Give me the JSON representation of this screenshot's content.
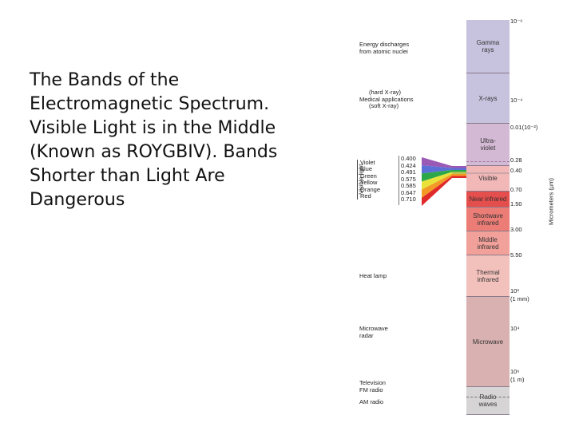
{
  "slide": {
    "text_lines": [
      "The Bands of the",
      "Electromagnetic Spectrum.",
      "Visible Light is in the Middle",
      "(Known as ROYGBIV).  Bands",
      "Shorter than Light Are",
      "Dangerous"
    ]
  },
  "spectrum": {
    "bands": [
      {
        "label": [
          "Gamma",
          "rays"
        ],
        "color": "#c7c2de"
      },
      {
        "label": [
          "X-rays"
        ],
        "color": "#c7c2de"
      },
      {
        "label": [
          "Ultra-",
          "violet"
        ],
        "color": "#d4b9d4"
      },
      {
        "label": [
          "Visible"
        ],
        "color": "#f2b8b8"
      },
      {
        "label": [
          "Near infrared"
        ],
        "color": "#e44e4c"
      },
      {
        "label": [
          "Shortwave",
          "infrared"
        ],
        "color": "#ec7c76"
      },
      {
        "label": [
          "Middle",
          "infrared"
        ],
        "color": "#f1a09a"
      },
      {
        "label": [
          "Thermal",
          "infrared"
        ],
        "color": "#f3c1bc"
      },
      {
        "label": [
          "Microwave"
        ],
        "color": "#d9b1b0"
      },
      {
        "label": [
          "Radio",
          "waves"
        ],
        "color": "#d6d4d4"
      }
    ],
    "left_labels": [
      {
        "lines": [
          "Energy discharges",
          "from atomic nuclei"
        ]
      },
      {
        "lines": [
          "(hard X-ray)",
          "Medical applications",
          "(soft X-ray)"
        ]
      },
      {
        "lines": [
          "Heat lamp"
        ]
      },
      {
        "lines": [
          "Microwave",
          "radar"
        ]
      },
      {
        "lines": [
          "Television",
          "FM radio"
        ]
      },
      {
        "lines": [
          "AM radio"
        ]
      }
    ],
    "right_labels": [
      {
        "text": "10⁻⁶"
      },
      {
        "text": "10⁻⁴"
      },
      {
        "text": "0.01(10⁻²)"
      },
      {
        "text": "0.28"
      },
      {
        "text": "0.40"
      },
      {
        "text": "0.70"
      },
      {
        "text": "1.50"
      },
      {
        "text": "3.00"
      },
      {
        "text": "5.50"
      },
      {
        "text": "10³"
      },
      {
        "text": "(1 mm)"
      },
      {
        "text": "10⁴"
      },
      {
        "text": "10⁶"
      },
      {
        "text": "(1 m)"
      }
    ],
    "visible_light": {
      "axis_label": "Visible light",
      "colors": [
        "Violet",
        "Blue",
        "Green",
        "Yellow",
        "Orange",
        "Red"
      ],
      "wavelengths": [
        "0.400",
        "0.424",
        "0.491",
        "0.575",
        "0.585",
        "0.647",
        "0.710"
      ],
      "fan_colors": [
        "#9b59b6",
        "#5b6fd6",
        "#2ca84a",
        "#e8e23a",
        "#f39a26",
        "#e02a2a"
      ]
    },
    "axis_title": "Micrometers (µm)"
  }
}
